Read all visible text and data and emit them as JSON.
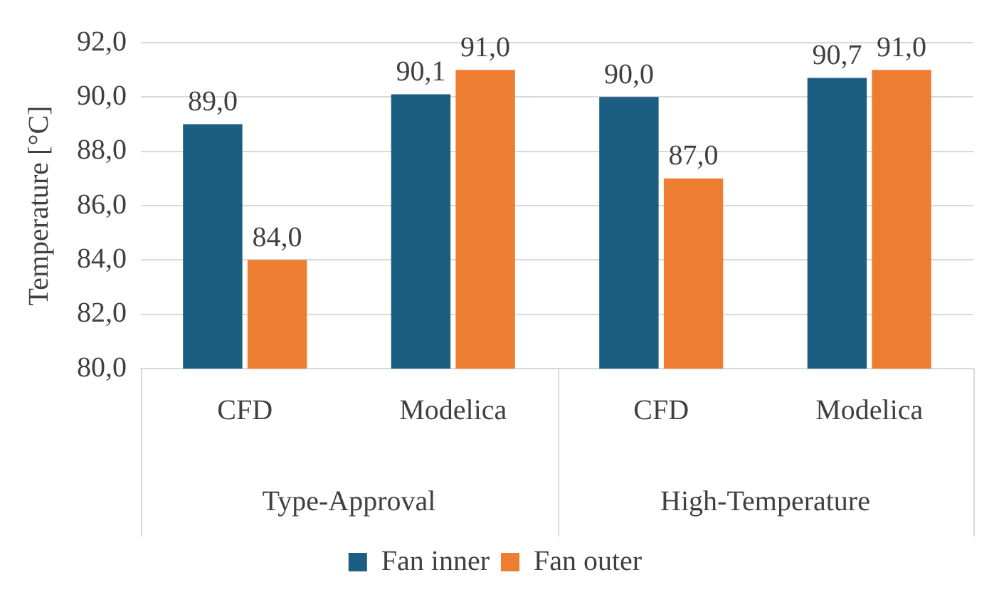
{
  "chart_data": {
    "type": "bar",
    "ylabel": "Temperature [°C]",
    "categories": [
      "CFD",
      "Modelica",
      "CFD",
      "Modelica"
    ],
    "annotations": [
      "Type-Approval",
      "High-Temperature"
    ],
    "series": [
      {
        "name": "Fan inner",
        "color": "#1b5e81",
        "values": [
          89.0,
          90.1,
          90.0,
          90.7
        ],
        "value_labels": [
          "89,0",
          "90,1",
          "90,0",
          "90,7"
        ]
      },
      {
        "name": "Fan outer",
        "color": "#ed7d31",
        "values": [
          84.0,
          91.0,
          87.0,
          91.0
        ],
        "value_labels": [
          "84,0",
          "91,0",
          "87,0",
          "91,0"
        ]
      }
    ],
    "ylim": [
      80,
      92
    ],
    "yticks": [
      {
        "value": 80,
        "label": "80,0"
      },
      {
        "value": 82,
        "label": "82,0"
      },
      {
        "value": 84,
        "label": "84,0"
      },
      {
        "value": 86,
        "label": "86,0"
      },
      {
        "value": 88,
        "label": "88,0"
      },
      {
        "value": 90,
        "label": "90,0"
      },
      {
        "value": 92,
        "label": "92,0"
      }
    ],
    "grid": "y",
    "legend": "bottom"
  }
}
